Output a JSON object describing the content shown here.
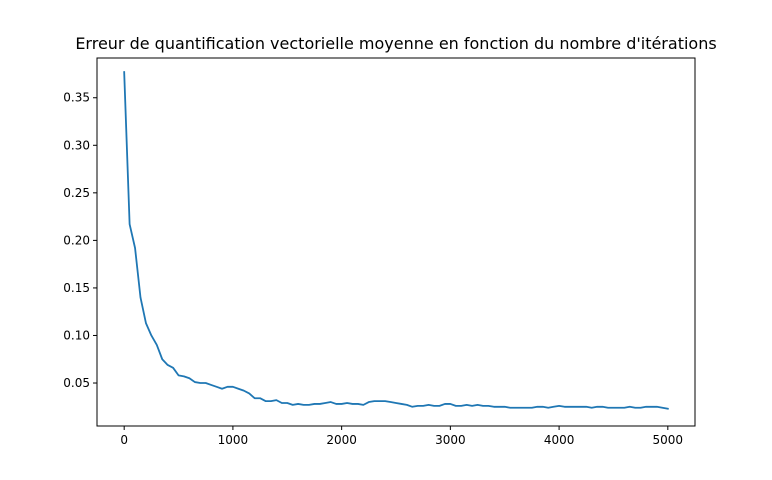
{
  "chart_data": {
    "type": "line",
    "title": "Erreur de quantification vectorielle moyenne en fonction du nombre d'itérations",
    "xlabel": "",
    "ylabel": "",
    "xlim": [
      -250,
      5250
    ],
    "ylim": [
      0.0048,
      0.3918
    ],
    "xticks": [
      0,
      1000,
      2000,
      3000,
      4000,
      5000
    ],
    "xtick_labels": [
      "0",
      "1000",
      "2000",
      "3000",
      "4000",
      "5000"
    ],
    "yticks": [
      0.05,
      0.1,
      0.15,
      0.2,
      0.25,
      0.3,
      0.35
    ],
    "ytick_labels": [
      "0.05",
      "0.10",
      "0.15",
      "0.20",
      "0.25",
      "0.30",
      "0.35"
    ],
    "grid": false,
    "line_color": "#1f77b4",
    "series": [
      {
        "x": [
          0,
          50,
          100,
          150,
          200,
          250,
          300,
          350,
          400,
          450,
          500,
          550,
          600,
          650,
          700,
          750,
          800,
          850,
          900,
          950,
          1000,
          1050,
          1100,
          1150,
          1200,
          1250,
          1300,
          1350,
          1400,
          1450,
          1500,
          1550,
          1600,
          1650,
          1700,
          1750,
          1800,
          1850,
          1900,
          1950,
          2000,
          2050,
          2100,
          2150,
          2200,
          2250,
          2300,
          2350,
          2400,
          2450,
          2500,
          2550,
          2600,
          2650,
          2700,
          2750,
          2800,
          2850,
          2900,
          2950,
          3000,
          3050,
          3100,
          3150,
          3200,
          3250,
          3300,
          3350,
          3400,
          3450,
          3500,
          3550,
          3600,
          3650,
          3700,
          3750,
          3800,
          3850,
          3900,
          3950,
          4000,
          4050,
          4100,
          4150,
          4200,
          4250,
          4300,
          4350,
          4400,
          4450,
          4500,
          4550,
          4600,
          4650,
          4700,
          4750,
          4800,
          4850,
          4900,
          4950,
          5000
        ],
        "y": [
          0.377,
          0.217,
          0.192,
          0.14,
          0.113,
          0.1,
          0.09,
          0.075,
          0.069,
          0.066,
          0.058,
          0.057,
          0.055,
          0.051,
          0.05,
          0.05,
          0.048,
          0.046,
          0.044,
          0.046,
          0.046,
          0.044,
          0.042,
          0.039,
          0.034,
          0.034,
          0.031,
          0.031,
          0.032,
          0.029,
          0.029,
          0.027,
          0.028,
          0.027,
          0.027,
          0.028,
          0.028,
          0.029,
          0.03,
          0.028,
          0.028,
          0.029,
          0.028,
          0.028,
          0.027,
          0.03,
          0.031,
          0.031,
          0.031,
          0.03,
          0.029,
          0.028,
          0.027,
          0.025,
          0.026,
          0.026,
          0.027,
          0.026,
          0.026,
          0.028,
          0.028,
          0.026,
          0.026,
          0.027,
          0.026,
          0.027,
          0.026,
          0.026,
          0.025,
          0.025,
          0.025,
          0.024,
          0.024,
          0.024,
          0.024,
          0.024,
          0.025,
          0.025,
          0.024,
          0.025,
          0.026,
          0.025,
          0.025,
          0.025,
          0.025,
          0.025,
          0.024,
          0.025,
          0.025,
          0.024,
          0.024,
          0.024,
          0.024,
          0.025,
          0.024,
          0.024,
          0.025,
          0.025,
          0.025,
          0.024,
          0.023
        ]
      }
    ]
  }
}
